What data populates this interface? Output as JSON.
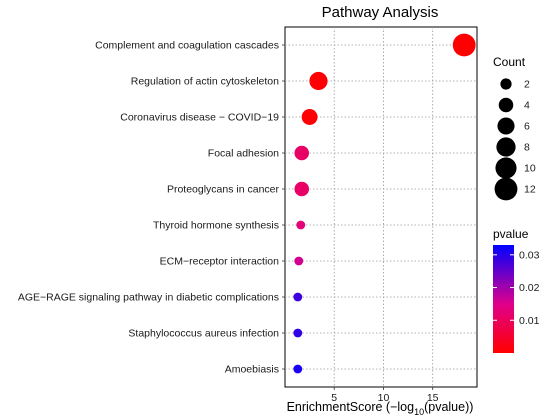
{
  "chart_data": {
    "type": "scatter",
    "title": "Pathway Analysis",
    "xlabel_main": "EnrichmentScore (−log",
    "xlabel_sub": "10",
    "xlabel_tail": "(pvalue))",
    "xticks": [
      5,
      10,
      15
    ],
    "xlim": [
      0,
      19.5
    ],
    "grid": true,
    "categories": [
      "Complement and coagulation cascades",
      "Regulation of actin cytoskeleton",
      "Coronavirus disease − COVID−19",
      "Focal adhesion",
      "Proteoglycans in cancer",
      "Thyroid hormone synthesis",
      "ECM−receptor interaction",
      "AGE−RAGE signaling pathway in diabetic complications",
      "Staphylococcus aureus infection",
      "Amoebiasis"
    ],
    "points": [
      {
        "x": 18.2,
        "count": 12,
        "pvalue": 1e-06
      },
      {
        "x": 3.4,
        "count": 7,
        "pvalue": 0.0004
      },
      {
        "x": 2.5,
        "count": 5,
        "pvalue": 0.0005
      },
      {
        "x": 1.7,
        "count": 4,
        "pvalue": 0.011
      },
      {
        "x": 1.7,
        "count": 4,
        "pvalue": 0.011
      },
      {
        "x": 1.6,
        "count": 1,
        "pvalue": 0.013
      },
      {
        "x": 1.4,
        "count": 1,
        "pvalue": 0.016
      },
      {
        "x": 1.3,
        "count": 1,
        "pvalue": 0.028
      },
      {
        "x": 1.3,
        "count": 1,
        "pvalue": 0.029
      },
      {
        "x": 1.3,
        "count": 1,
        "pvalue": 0.031
      }
    ],
    "size_legend": {
      "title": "Count",
      "values": [
        2,
        4,
        6,
        8,
        10,
        12
      ]
    },
    "color_legend": {
      "title": "pvalue",
      "ticks": [
        0.01,
        0.02,
        0.03
      ],
      "range": [
        0,
        0.033
      ],
      "low_color": "#ff0000",
      "high_color": "#0000ff"
    }
  }
}
